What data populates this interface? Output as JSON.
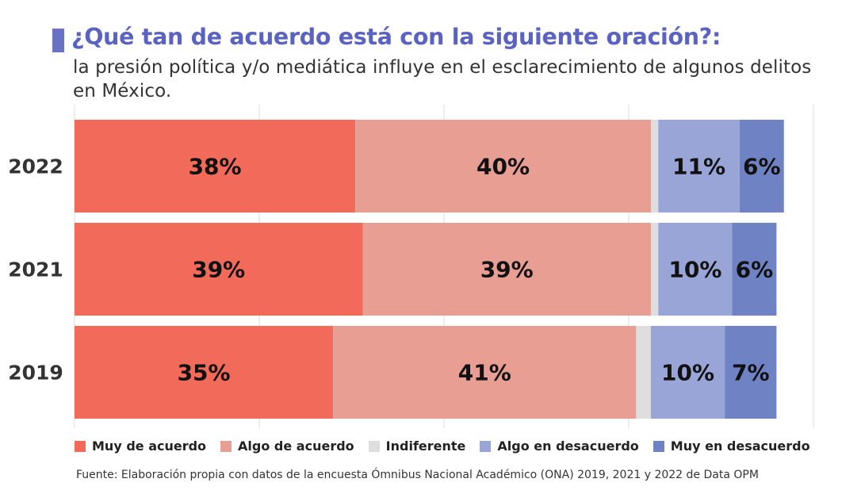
{
  "header": {
    "title": "¿Qué tan de acuerdo está con la siguiente oración?:",
    "subtitle": "la presión política y/o mediática influye en el esclarecimiento de algunos delitos en México."
  },
  "colors": {
    "accent": "#5b63c0",
    "muy_de_acuerdo": "#f26a5a",
    "algo_de_acuerdo": "#e89e93",
    "indiferente": "#dedede",
    "algo_en_desacuerdo": "#98a5d6",
    "muy_en_desacuerdo": "#6f83c4",
    "gridline": "#dcdcdc"
  },
  "chart_data": {
    "type": "bar",
    "orientation": "horizontal",
    "stacked": true,
    "title": "¿Qué tan de acuerdo está con la siguiente oración?:",
    "subtitle": "la presión política y/o mediática influye en el esclarecimiento de algunos delitos en México.",
    "categories": [
      "2022",
      "2021",
      "2019"
    ],
    "series": [
      {
        "name": "Muy de acuerdo",
        "values": [
          38,
          39,
          35
        ],
        "labels": [
          "38%",
          "39%",
          "35%"
        ]
      },
      {
        "name": "Algo de acuerdo",
        "values": [
          40,
          39,
          41
        ],
        "labels": [
          "40%",
          "39%",
          "41%"
        ]
      },
      {
        "name": "Indiferente",
        "values": [
          1,
          1,
          2
        ],
        "labels": [
          "",
          "",
          ""
        ]
      },
      {
        "name": "Algo en desacuerdo",
        "values": [
          11,
          10,
          10
        ],
        "labels": [
          "11%",
          "10%",
          "10%"
        ]
      },
      {
        "name": "Muy en desacuerdo",
        "values": [
          6,
          6,
          7
        ],
        "labels": [
          "6%",
          "6%",
          "7%"
        ]
      }
    ],
    "xlim": [
      0,
      100
    ],
    "grid": true,
    "legend_position": "bottom"
  },
  "footer": {
    "source": "Fuente: Elaboración propia con datos de la encuesta Ómnibus Nacional Académico (ONA) 2019, 2021 y 2022 de Data OPM"
  }
}
